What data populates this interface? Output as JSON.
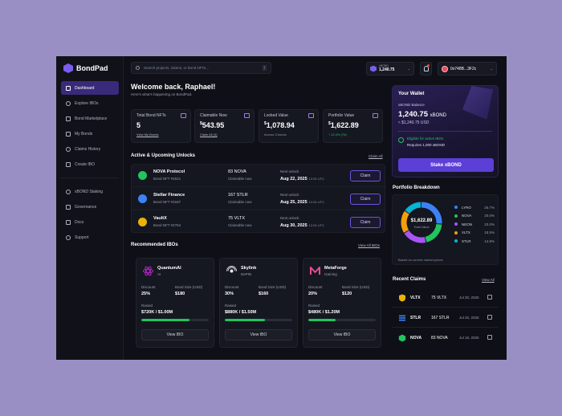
{
  "app": {
    "name": "BondPad"
  },
  "sidebar": {
    "items": [
      {
        "label": "Dashboard",
        "icon": "grid-icon"
      },
      {
        "label": "Explore IBOs",
        "icon": "compass-icon"
      },
      {
        "label": "Bond Marketplace",
        "icon": "store-icon"
      },
      {
        "label": "My Bonds",
        "icon": "folder-icon"
      },
      {
        "label": "Claims History",
        "icon": "clock-icon"
      },
      {
        "label": "Create IBO",
        "icon": "plus-icon"
      }
    ],
    "secondary": [
      {
        "label": "xBOND Staking",
        "icon": "stack-icon"
      },
      {
        "label": "Governance",
        "icon": "vote-icon"
      },
      {
        "label": "Docs",
        "icon": "doc-icon"
      },
      {
        "label": "Support",
        "icon": "help-icon"
      }
    ]
  },
  "topbar": {
    "search_placeholder": "Search projects, tokens, or Bond NFTs...",
    "search_shortcut": "/",
    "xbond_label": "xBOND",
    "xbond_value": "1,240.75",
    "wallet_address": "0x748B...3F2c"
  },
  "welcome": {
    "title": "Welcome back, Raphael!",
    "subtitle": "Here's what's happening on BondPad."
  },
  "stats": [
    {
      "label": "Total Bond NFTs",
      "value": "5",
      "currency": "",
      "sub": "View My Bonds"
    },
    {
      "label": "Claimable Now",
      "value": "543.95",
      "currency": "$",
      "sub": "Claim All (4)"
    },
    {
      "label": "Locked Value",
      "value": "1,078.94",
      "currency": "$",
      "sub": "Across 3 bonds"
    },
    {
      "label": "Portfolio Value",
      "value": "1,622.89",
      "currency": "$",
      "sub": "↑ 12.4% (7d)"
    }
  ],
  "unlocks": {
    "title": "Active & Upcoming Unlocks",
    "link": "Claim All",
    "claim_label": "Claim",
    "next_label": "Next unlock",
    "rows": [
      {
        "name": "NOVA Protocol",
        "id": "Bond NFT #4521",
        "amount": "83 NOVA",
        "status": "Claimable now",
        "date": "Aug 22, 2025",
        "time": "12:00 UTC",
        "color": "#22c55e"
      },
      {
        "name": "Stellar Finance",
        "id": "Bond NFT #3187",
        "amount": "167 STLR",
        "status": "Claimable now",
        "date": "Aug 25, 2025",
        "time": "12:00 UTC",
        "color": "#3b82f6"
      },
      {
        "name": "VaultX",
        "id": "Bond NFT #2764",
        "amount": "75 VLTX",
        "status": "Claimable now",
        "date": "Aug 30, 2025",
        "time": "12:00 UTC",
        "color": "#eab308"
      }
    ]
  },
  "ibos": {
    "title": "Recommended IBOs",
    "link": "View All IBOs",
    "discount_label": "Discount",
    "bond_size_label": "Bond Size (USD)",
    "raised_label": "Raised",
    "button_label": "View IBO",
    "items": [
      {
        "name": "QuantumAI",
        "category": "AI",
        "discount": "25%",
        "bond_size": "$180",
        "raised": "$720K / $1.00M",
        "progress": 0.72,
        "color": "#c026d3"
      },
      {
        "name": "Skylink",
        "category": "DePIN",
        "discount": "30%",
        "bond_size": "$160",
        "raised": "$880K / $1.50M",
        "progress": 0.59,
        "color": "#e5e7eb"
      },
      {
        "name": "MetaForge",
        "category": "Gaming",
        "discount": "20%",
        "bond_size": "$120",
        "raised": "$480K / $1.20M",
        "progress": 0.4,
        "color": "#ec4899"
      }
    ]
  },
  "wallet": {
    "title": "Your Wallet",
    "balance_label": "xBOND Balance",
    "balance": "1,240.75",
    "unit": "xBOND",
    "usd": "≈ $1,240.75 USD",
    "eligible": "Eligible for active IBOs",
    "requires": "Requires 1,000 xBOND",
    "stake_label": "Stake xBOND"
  },
  "portfolio": {
    "title": "Portfolio Breakdown",
    "total": "$1,622.89",
    "total_label": "Total Value",
    "note": "Based on current market prices",
    "slices": [
      {
        "name": "LYRO",
        "pct": "26.7%",
        "value": 26.7,
        "color": "#3b82f6"
      },
      {
        "name": "NOVA",
        "pct": "20.0%",
        "value": 20.0,
        "color": "#22c55e"
      },
      {
        "name": "NEON",
        "pct": "20.0%",
        "value": 20.0,
        "color": "#a855f7"
      },
      {
        "name": "VLTX",
        "pct": "18.5%",
        "value": 18.5,
        "color": "#f59e0b"
      },
      {
        "name": "STLR",
        "pct": "14.8%",
        "value": 14.8,
        "color": "#06b6d4"
      }
    ]
  },
  "recent_claims": {
    "title": "Recent Claims",
    "link": "View All",
    "rows": [
      {
        "token": "VLTX",
        "amount": "75 VLTX",
        "date": "Jul 30, 2025",
        "color": "#eab308"
      },
      {
        "token": "STLR",
        "amount": "167 STLR",
        "date": "Jul 25, 2025",
        "color": "#3b82f6"
      },
      {
        "token": "NOVA",
        "amount": "83 NOVA",
        "date": "Jul 16, 2025",
        "color": "#22c55e"
      }
    ]
  }
}
